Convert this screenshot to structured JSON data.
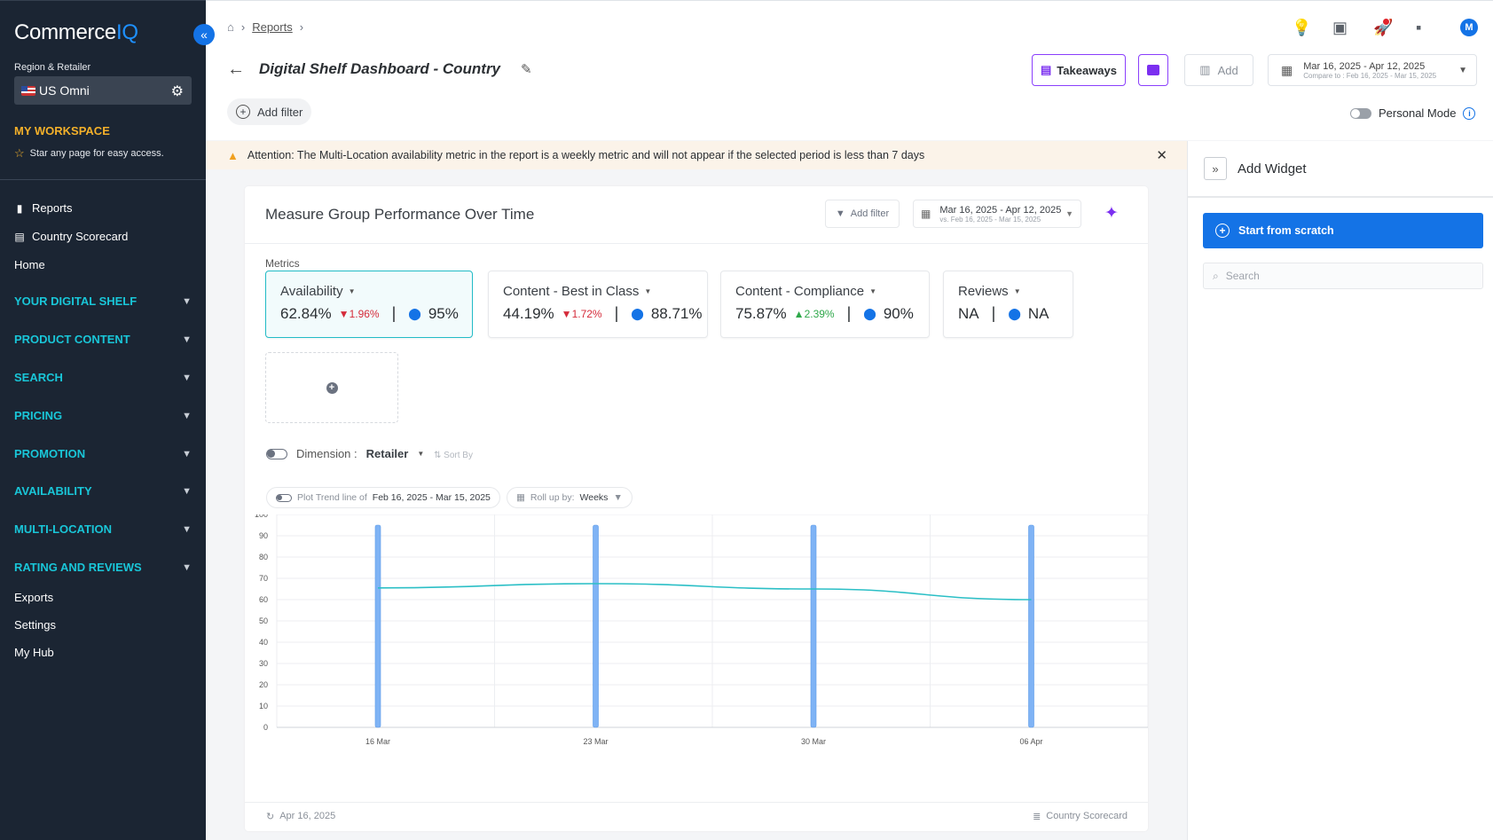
{
  "sidebar": {
    "logo_main": "Commerce",
    "logo_accent": "IQ",
    "region_label": "Region & Retailer",
    "region_value": "US",
    "region_retailer": "Omni",
    "workspace_title": "MY WORKSPACE",
    "workspace_sub": "Star any page for easy access.",
    "links": [
      "Reports",
      "Country Scorecard",
      "Home"
    ],
    "sections": [
      "YOUR DIGITAL SHELF",
      "PRODUCT CONTENT",
      "SEARCH",
      "PRICING",
      "PROMOTION",
      "AVAILABILITY",
      "MULTI-LOCATION",
      "RATING AND REVIEWS"
    ],
    "bottom_links": [
      "Exports",
      "Settings",
      "My Hub"
    ]
  },
  "header": {
    "breadcrumb": "Reports",
    "title": "Digital Shelf Dashboard - Country",
    "takeaways_label": "Takeaways",
    "add_label": "Add",
    "date_main": "Mar 16, 2025 - Apr 12, 2025",
    "date_compare": "Compare to : Feb 16, 2025 - Mar 15, 2025",
    "add_filter_label": "Add filter",
    "personal_mode_label": "Personal Mode",
    "avatar_initial": "M"
  },
  "banner": {
    "text": "Attention: The Multi-Location availability metric in the report is a weekly metric and will not appear if the selected period is less than 7 days"
  },
  "widget": {
    "title": "Measure Group Performance Over Time",
    "add_filter_label": "Add filter",
    "date_main": "Mar 16, 2025 - Apr 12, 2025",
    "date_vs": "vs. Feb 16, 2025 - Mar 15, 2025",
    "metrics_label": "Metrics",
    "metrics": [
      {
        "name": "Availability",
        "value": "62.84%",
        "delta": "1.96%",
        "target": "95%"
      },
      {
        "name": "Content - Best in Class",
        "value": "44.19%",
        "delta": "1.72%",
        "target": "88.71%"
      },
      {
        "name": "Content - Compliance",
        "value": "75.87%",
        "delta": "2.39%",
        "target": "90%"
      },
      {
        "name": "Reviews",
        "value": "NA",
        "target": "NA"
      }
    ],
    "dimension_label": "Dimension :",
    "dimension_value": "Retailer",
    "sort_label": "Sort By",
    "trend_label": "Plot Trend line of",
    "trend_range": "Feb 16, 2025 - Mar 15, 2025",
    "rollup_label": "Roll up by:",
    "rollup_value": "Weeks",
    "footer_date": "Apr 16, 2025",
    "footer_source": "Country Scorecard"
  },
  "chart_data": {
    "type": "bar",
    "categories": [
      "16 Mar",
      "23 Mar",
      "30 Mar",
      "06 Apr"
    ],
    "ylim": [
      0,
      100
    ],
    "yticks": [
      0,
      10,
      20,
      30,
      40,
      50,
      60,
      70,
      80,
      90,
      100
    ],
    "series": [
      {
        "name": "Target",
        "type": "bar",
        "values": [
          95,
          95,
          95,
          95
        ],
        "color": "#7fb3f5"
      },
      {
        "name": "Availability",
        "type": "line",
        "values": [
          65.5,
          67.5,
          65,
          60
        ],
        "color": "#2bbfc6"
      }
    ],
    "grid": true
  },
  "rpanel": {
    "title": "Add Widget",
    "start_label": "Start from scratch",
    "search_placeholder": "Search"
  }
}
